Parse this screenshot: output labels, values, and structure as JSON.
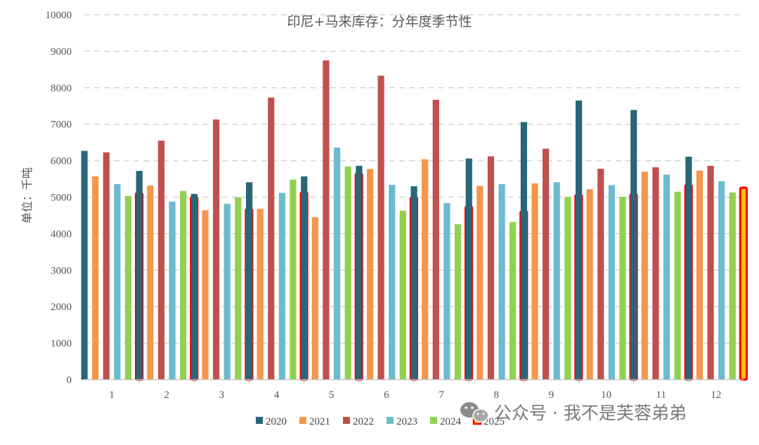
{
  "chart_data": {
    "type": "bar",
    "title": "印尼+马来库存：分年度季节性",
    "ylabel": "单位：千吨",
    "xlabel": "",
    "ylim": [
      0,
      10000
    ],
    "yticks": [
      0,
      1000,
      2000,
      3000,
      4000,
      5000,
      6000,
      7000,
      8000,
      9000,
      10000
    ],
    "grid": true,
    "grid_style": "dashed-horizontal",
    "legend_position": "bottom",
    "categories": [
      "1",
      "2",
      "3",
      "4",
      "5",
      "6",
      "7",
      "8",
      "9",
      "10",
      "11",
      "12"
    ],
    "series": [
      {
        "name": "2020",
        "color": "#276778",
        "values": [
          6270,
          5720,
          5090,
          5410,
          5570,
          5860,
          5300,
          6060,
          7060,
          7650,
          7390,
          6110
        ]
      },
      {
        "name": "2021",
        "color": "#f5964a",
        "values": [
          5570,
          5320,
          4640,
          4680,
          4450,
          5770,
          6040,
          5310,
          5380,
          5220,
          5700,
          5730
        ]
      },
      {
        "name": "2022",
        "color": "#c0504d",
        "values": [
          6230,
          6550,
          7130,
          7730,
          8750,
          8330,
          7670,
          6120,
          6330,
          5780,
          5820,
          5860
        ]
      },
      {
        "name": "2023",
        "color": "#6cbbcf",
        "values": [
          5360,
          4880,
          4820,
          5120,
          6360,
          5340,
          4840,
          5360,
          5410,
          5330,
          5620,
          5440
        ]
      },
      {
        "name": "2024",
        "color": "#92d050",
        "values": [
          5030,
          5170,
          5000,
          5480,
          5840,
          4630,
          4260,
          4320,
          5010,
          5010,
          5150,
          5130
        ]
      },
      {
        "name": "2025",
        "color": "#ff0000",
        "values": [
          5110,
          5000,
          4670,
          5130,
          5640,
          4990,
          4740,
          4610,
          5060,
          5080,
          5330,
          5260
        ]
      }
    ]
  },
  "watermark": {
    "text": "公众号 · 我不是芙蓉弟弟",
    "icon": "wechat-icon"
  }
}
